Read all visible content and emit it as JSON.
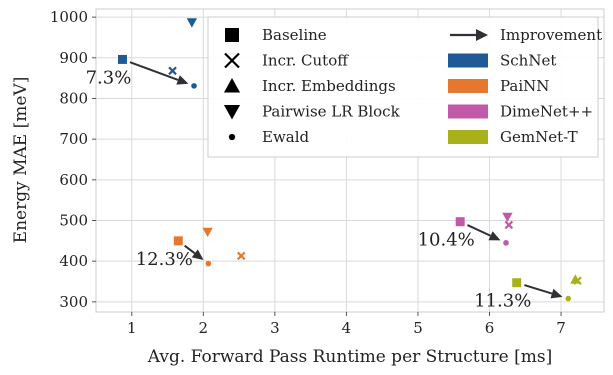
{
  "chart_data": {
    "type": "scatter",
    "xlabel": "Avg. Forward Pass Runtime per Structure [ms]",
    "ylabel": "Energy MAE [meV]",
    "xlim": [
      0.5,
      7.6
    ],
    "ylim": [
      275,
      1020
    ],
    "xticks": [
      1,
      2,
      3,
      4,
      5,
      6,
      7
    ],
    "yticks": [
      300,
      400,
      500,
      600,
      700,
      800,
      900,
      1000
    ],
    "grid": true,
    "legend_position": "top-right",
    "marker_legend": [
      {
        "marker": "square",
        "label": "Baseline"
      },
      {
        "marker": "cross",
        "label": "Incr. Cutoff"
      },
      {
        "marker": "triangle-up",
        "label": "Incr. Embeddings"
      },
      {
        "marker": "triangle-down",
        "label": "Pairwise LR Block"
      },
      {
        "marker": "dot",
        "label": "Ewald"
      }
    ],
    "improvement_label": "Improvement",
    "series": [
      {
        "name": "SchNet",
        "color": "#1f5a96",
        "points": [
          {
            "variant": "Baseline",
            "x": 0.87,
            "y": 896
          },
          {
            "variant": "Incr. Cutoff",
            "x": 1.57,
            "y": 868
          },
          {
            "variant": "Pairwise LR Block",
            "x": 1.84,
            "y": 987
          },
          {
            "variant": "Ewald",
            "x": 1.87,
            "y": 831
          }
        ],
        "improvement": {
          "label": "7.3%",
          "from": [
            0.87,
            896
          ],
          "to": [
            1.87,
            831
          ]
        }
      },
      {
        "name": "PaiNN",
        "color": "#e5772e",
        "points": [
          {
            "variant": "Baseline",
            "x": 1.65,
            "y": 450
          },
          {
            "variant": "Incr. Cutoff",
            "x": 2.53,
            "y": 413
          },
          {
            "variant": "Pairwise LR Block",
            "x": 2.06,
            "y": 472
          },
          {
            "variant": "Ewald",
            "x": 2.07,
            "y": 394
          }
        ],
        "improvement": {
          "label": "12.3%",
          "from": [
            1.65,
            450
          ],
          "to": [
            2.07,
            394
          ]
        }
      },
      {
        "name": "DimeNet++",
        "color": "#c05aa8",
        "points": [
          {
            "variant": "Baseline",
            "x": 5.59,
            "y": 497
          },
          {
            "variant": "Incr. Cutoff",
            "x": 6.27,
            "y": 489
          },
          {
            "variant": "Pairwise LR Block",
            "x": 6.25,
            "y": 509
          },
          {
            "variant": "Ewald",
            "x": 6.23,
            "y": 445
          }
        ],
        "improvement": {
          "label": "10.4%",
          "from": [
            5.59,
            497
          ],
          "to": [
            6.23,
            445
          ]
        }
      },
      {
        "name": "GemNet-T",
        "color": "#a8b11a",
        "points": [
          {
            "variant": "Baseline",
            "x": 6.38,
            "y": 347
          },
          {
            "variant": "Incr. Cutoff",
            "x": 7.23,
            "y": 352
          },
          {
            "variant": "Incr. Embeddings",
            "x": 7.2,
            "y": 355
          },
          {
            "variant": "Ewald",
            "x": 7.1,
            "y": 308
          }
        ],
        "improvement": {
          "label": "11.3%",
          "from": [
            6.38,
            347
          ],
          "to": [
            7.1,
            308
          ]
        }
      }
    ]
  }
}
